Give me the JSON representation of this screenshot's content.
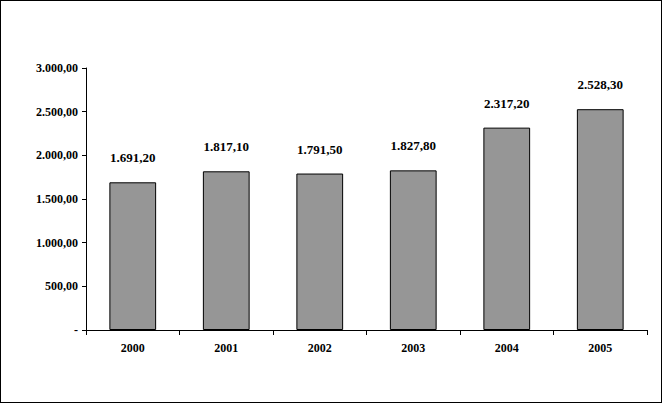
{
  "chart_data": {
    "type": "bar",
    "categories": [
      "2000",
      "2001",
      "2002",
      "2003",
      "2004",
      "2005"
    ],
    "values": [
      1691.2,
      1817.1,
      1791.5,
      1827.8,
      2317.2,
      2528.3
    ],
    "value_labels": [
      "1.691,20",
      "1.817,10",
      "1.791,50",
      "1.827,80",
      "2.317,20",
      "2.528,30"
    ],
    "data_labels": true,
    "color": "#969696",
    "ylim": [
      0,
      3000
    ],
    "yticks": [
      {
        "value": 0,
        "label": "-"
      },
      {
        "value": 500,
        "label": "500,00"
      },
      {
        "value": 1000,
        "label": "1.000,00"
      },
      {
        "value": 1500,
        "label": "1.500,00"
      },
      {
        "value": 2000,
        "label": "2.000,00"
      },
      {
        "value": 2500,
        "label": "2.500,00"
      },
      {
        "value": 3000,
        "label": "3.000,00"
      }
    ],
    "grid": false
  }
}
